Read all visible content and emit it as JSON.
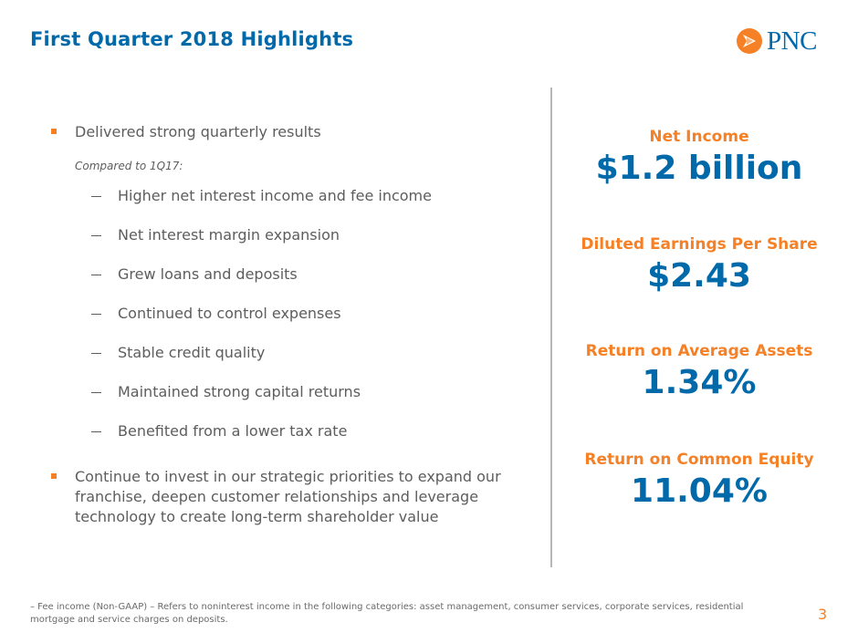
{
  "header": {
    "title": "First Quarter 2018 Highlights",
    "logo_text": "PNC",
    "brand_blue": "#0069AA",
    "brand_orange": "#F58025"
  },
  "highlights": {
    "bullet1": "Delivered strong quarterly results",
    "compared_label": "Compared to 1Q17:",
    "sub_items": [
      "Higher net interest income and fee income",
      "Net interest margin expansion",
      "Grew loans and deposits",
      "Continued to control expenses",
      "Stable credit quality",
      "Maintained strong capital returns",
      "Benefited from a lower tax rate"
    ],
    "bullet2": "Continue to invest in our strategic priorities to expand our franchise, deepen customer relationships and leverage technology to create long-term shareholder value"
  },
  "metrics": [
    {
      "label": "Net Income",
      "value": "$1.2 billion"
    },
    {
      "label": "Diluted Earnings Per Share",
      "value": "$2.43"
    },
    {
      "label": "Return on Average Assets",
      "value": "1.34%"
    },
    {
      "label": "Return on Common Equity",
      "value": "11.04%"
    }
  ],
  "footnote": "– Fee income (Non-GAAP) – Refers to noninterest income in the following categories: asset management, consumer services, corporate services, residential mortgage and service charges on deposits.",
  "page_number": "3"
}
